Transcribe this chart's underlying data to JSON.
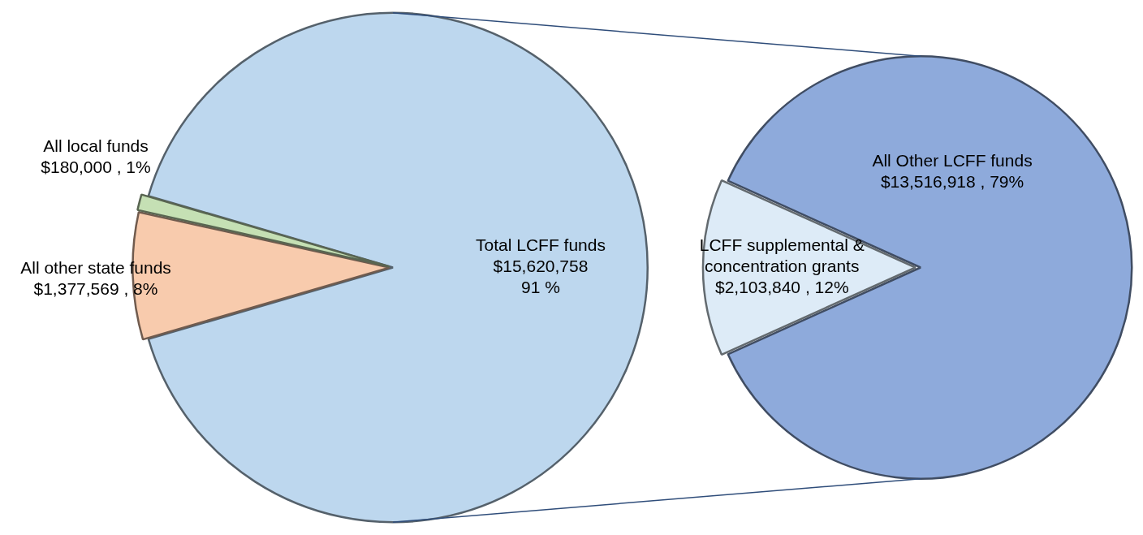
{
  "chart_data": [
    {
      "type": "pie",
      "categories": [
        "Total LCFF funds",
        "All other state funds",
        "All local funds"
      ],
      "values": [
        15620758,
        1377569,
        180000
      ],
      "colors": [
        "#bdd7ee",
        "#f8cbad",
        "#c5e0b4"
      ],
      "value_labels": [
        "$15,620,758\n91 %",
        "$1,377,569 , 8%",
        "$180,000 , 1%"
      ]
    },
    {
      "type": "pie",
      "categories": [
        "All Other LCFF funds",
        "LCFF supplemental & concentration grants"
      ],
      "values": [
        13516918,
        2103840
      ],
      "colors": [
        "#8eaadb",
        "#ddebf7"
      ],
      "value_labels": [
        "$13,516,918 , 79%",
        "$2,103,840 , 12%"
      ]
    }
  ]
}
